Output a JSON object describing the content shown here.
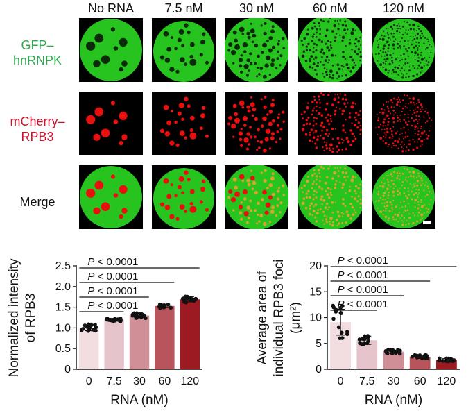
{
  "columns": [
    "No RNA",
    "7.5 nM",
    "30 nM",
    "60 nM",
    "120 nM"
  ],
  "rows": [
    {
      "label_lines": [
        "GFP–",
        "hnRNPK"
      ],
      "color": "#2fa84f",
      "kind": "gfp"
    },
    {
      "label_lines": [
        "mCherry–",
        "RPB3"
      ],
      "color": "#d0112b",
      "kind": "mcherry"
    },
    {
      "label_lines": [
        "Merge"
      ],
      "color": "#111111",
      "kind": "merge"
    }
  ],
  "colors": {
    "gfp": "#27c41f",
    "mcherry": "#e8100e",
    "background": "#000000"
  },
  "chart_data": [
    {
      "type": "bar",
      "categories": [
        "0",
        "7.5",
        "30",
        "60",
        "120"
      ],
      "values": [
        1.0,
        1.2,
        1.3,
        1.53,
        1.69
      ],
      "errors": [
        0.07,
        0.03,
        0.05,
        0.04,
        0.06
      ],
      "bar_colors": [
        "#f2dde1",
        "#e5c5cb",
        "#cf8f96",
        "#b8555c",
        "#9c1b22"
      ],
      "ylabel": "Normalized intensity of RPB3",
      "xlabel": "RNA (nM)",
      "ylim": [
        0,
        2.5
      ],
      "yticks": [
        "0",
        "0.5",
        "1.0",
        "1.5",
        "2.0",
        "2.5"
      ],
      "comparisons": [
        {
          "from": "0",
          "to": "7.5",
          "label": "P < 0.0001"
        },
        {
          "from": "0",
          "to": "30",
          "label": "P < 0.0001"
        },
        {
          "from": "0",
          "to": "60",
          "label": "P < 0.0001"
        },
        {
          "from": "0",
          "to": "120",
          "label": "P < 0.0001"
        }
      ],
      "points_per_group": 15
    },
    {
      "type": "bar",
      "categories": [
        "0",
        "7.5",
        "30",
        "60",
        "120"
      ],
      "values": [
        9.1,
        5.6,
        3.4,
        2.4,
        1.8
      ],
      "errors": [
        2.5,
        0.8,
        0.3,
        0.3,
        0.25
      ],
      "bar_colors": [
        "#f2dde1",
        "#e5c5cb",
        "#cf8f96",
        "#b8555c",
        "#9c1b22"
      ],
      "ylabel_lines": [
        "Average area of",
        "individual RPB3 foci"
      ],
      "ylabel_unit": "(μm²)",
      "xlabel": "RNA (nM)",
      "ylim": [
        0,
        20
      ],
      "yticks": [
        "0",
        "5",
        "10",
        "15",
        "20"
      ],
      "comparisons": [
        {
          "from": "0",
          "to": "7.5",
          "label": "P < 0.0001"
        },
        {
          "from": "0",
          "to": "30",
          "label": "P < 0.0001"
        },
        {
          "from": "0",
          "to": "60",
          "label": "P < 0.0001"
        },
        {
          "from": "0",
          "to": "120",
          "label": "P < 0.0001"
        }
      ],
      "points_per_group": 15
    }
  ]
}
